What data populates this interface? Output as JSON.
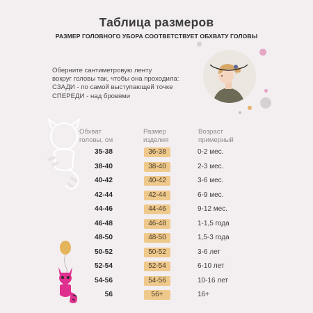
{
  "title": "Таблица размеров",
  "subtitle": "РАЗМЕР ГОЛОВНОГО УБОРА СООТВЕТСТВУЕТ ОБХВАТУ ГОЛОВЫ",
  "instructions": [
    "Оберните сантиметровую ленту",
    "вокруг головы так, чтобы она проходила:",
    "СЗАДИ - по самой выступающей точке",
    "СПЕРЕДИ - над бровями"
  ],
  "headers": {
    "girth": [
      "Обхват",
      "головы, см"
    ],
    "size": [
      "Размер",
      "изделия"
    ],
    "age": [
      "Возраст",
      "примерный"
    ]
  },
  "rows": [
    {
      "girth": "35-38",
      "size": "36-38",
      "age": "0-2 мес."
    },
    {
      "girth": "38-40",
      "size": "38-40",
      "age": "2-3 мес."
    },
    {
      "girth": "40-42",
      "size": "40-42",
      "age": "3-6 мес."
    },
    {
      "girth": "42-44",
      "size": "42-44",
      "age": "6-9 мес."
    },
    {
      "girth": "44-46",
      "size": "44-46",
      "age": "9-12 мес."
    },
    {
      "girth": "46-48",
      "size": "46-48",
      "age": "1-1,5 года"
    },
    {
      "girth": "48-50",
      "size": "48-50",
      "age": "1,5-3 года"
    },
    {
      "girth": "50-52",
      "size": "50-52",
      "age": "3-6 лет"
    },
    {
      "girth": "52-54",
      "size": "52-54",
      "age": "6-10 лет"
    },
    {
      "girth": "54-56",
      "size": "54-56",
      "age": "10-16 лет"
    },
    {
      "girth": "56",
      "size": "56+",
      "age": "16+"
    }
  ],
  "colors": {
    "background": "#f3eef0",
    "size_badge": "#efc98c",
    "pink_accent": "#e0308f",
    "balloon": "#e6b45c"
  },
  "icons": {
    "photo": "child-measuring-head-photo",
    "raccoon_outline": "raccoon-outline-icon",
    "raccoon_pink": "pink-raccoon-icon",
    "balloon": "balloon-icon"
  }
}
